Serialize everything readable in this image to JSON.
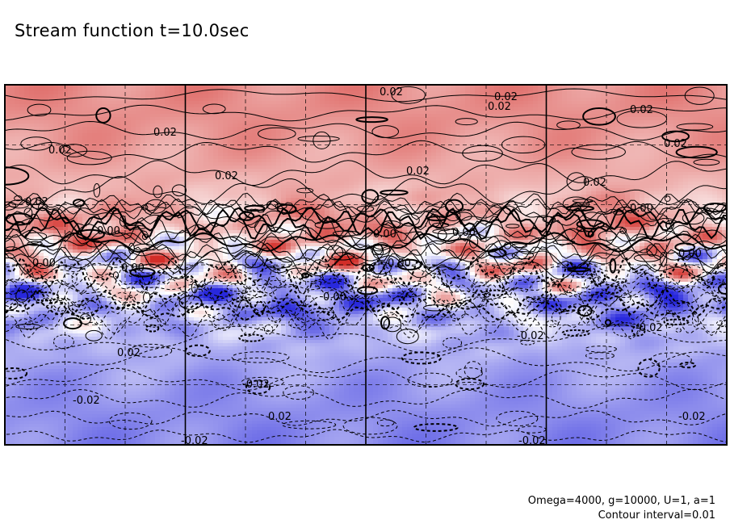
{
  "chart_data": {
    "type": "heatmap",
    "title": "Stream function t=10.0sec",
    "xlabel": "",
    "ylabel": "",
    "grid": true,
    "legend": "none",
    "parameters": "Omega=4000, g=10000, U=1, a=1",
    "contour_interval": "Contour interval=0.01",
    "contour_labels": [
      "0.02",
      "0.02",
      "0.02",
      "0.02",
      "0.02",
      "0.02",
      "0.02",
      "0.02",
      "0.02",
      "0.02",
      "0.02",
      "0.00",
      "0.00",
      "0.00",
      "0.00",
      "0.00",
      "0.00",
      "0.00",
      "0.00",
      "0.00",
      "-0.02",
      "0.02",
      "0.02",
      "-0.02",
      "-0.02",
      "-0.02",
      "-0.02",
      "-0.02",
      "-0.02"
    ],
    "colors": {
      "positive": "#d23030",
      "negative": "#2a2adc",
      "neutral": "#ffffff"
    }
  }
}
